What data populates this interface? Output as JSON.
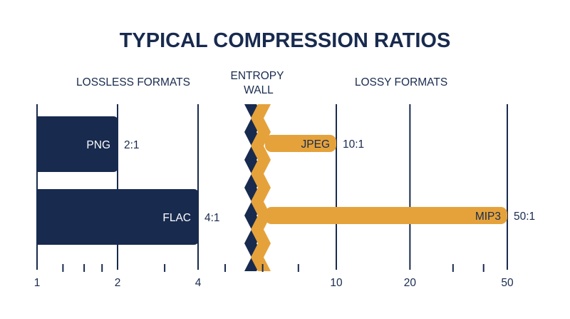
{
  "colors": {
    "navy": "#182a4e",
    "gold": "#e5a23b",
    "background": "#ffffff"
  },
  "chart_data": {
    "type": "bar",
    "orientation": "horizontal",
    "title": "TYPICAL COMPRESSION RATIOS",
    "x_scale": "log",
    "xlim": [
      1,
      50
    ],
    "tick_labels": [
      "1",
      "2",
      "4",
      "10",
      "20",
      "50"
    ],
    "tick_values": [
      1,
      2,
      4,
      10,
      20,
      50
    ],
    "minor_tick_values": [
      1.25,
      1.5,
      1.75,
      3,
      5,
      7,
      30,
      40
    ],
    "sections": {
      "lossless": "LOSSLESS FORMATS",
      "wall": "ENTROPY\nWALL",
      "lossy": "LOSSY FORMATS"
    },
    "series": [
      {
        "group": "lossless",
        "color": "#182a4e",
        "bars": [
          {
            "name": "PNG",
            "value": 2,
            "ratio_label": "2:1"
          },
          {
            "name": "FLAC",
            "value": 4,
            "ratio_label": "4:1"
          }
        ]
      },
      {
        "group": "lossy",
        "color": "#e5a23b",
        "bars": [
          {
            "name": "JPEG",
            "value": 10,
            "ratio_label": "10:1"
          },
          {
            "name": "MIP3",
            "value": 50,
            "ratio_label": "50:1"
          }
        ]
      }
    ]
  }
}
